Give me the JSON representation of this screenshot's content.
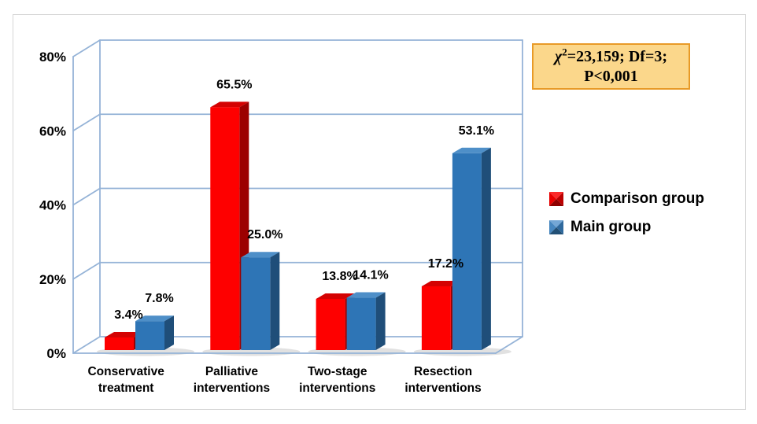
{
  "figure": {
    "background": "#ffffff",
    "border_color": "#d6d6d6"
  },
  "chart_data": {
    "type": "bar",
    "subtype": "3d-clustered-column",
    "title": "",
    "xlabel": "",
    "ylabel": "",
    "categories": [
      "Conservative treatment",
      "Palliative interventions",
      "Two-stage interventions",
      "Resection interventions"
    ],
    "series": [
      {
        "name": "Comparison group",
        "color": "#FE0000",
        "values": [
          3.4,
          65.5,
          13.8,
          17.2
        ],
        "labels": [
          "3.4%",
          "65.5%",
          "13.8%",
          "17.2%"
        ]
      },
      {
        "name": "Main group",
        "color": "#2E75B6",
        "values": [
          7.8,
          25.0,
          14.1,
          53.1
        ],
        "labels": [
          "7.8%",
          "25.0%",
          "14.1%",
          "53.1%"
        ]
      }
    ],
    "ylim": [
      0,
      80
    ],
    "yticks": [
      {
        "value": 0,
        "label": "0%"
      },
      {
        "value": 20,
        "label": "20%"
      },
      {
        "value": 40,
        "label": "40%"
      },
      {
        "value": 60,
        "label": "60%"
      },
      {
        "value": 80,
        "label": "80%"
      }
    ],
    "grid": true,
    "axis_color": "#95B3D7",
    "legend_position": "right"
  },
  "annotation": {
    "chi": "χ",
    "exponent": "2",
    "line1_rest": "=23,159; Df=3;",
    "line2": "P<0,001",
    "background": "#FBD78B",
    "border_color": "#E89A27"
  }
}
